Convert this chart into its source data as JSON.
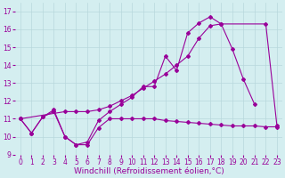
{
  "xlabel": "Windchill (Refroidissement éolien,°C)",
  "background_color": "#d4eef0",
  "grid_color": "#b8d8dc",
  "line_color": "#990099",
  "xlim": [
    -0.5,
    23.5
  ],
  "ylim": [
    9,
    17.5
  ],
  "xticks": [
    0,
    1,
    2,
    3,
    4,
    5,
    6,
    7,
    8,
    9,
    10,
    11,
    12,
    13,
    14,
    15,
    16,
    17,
    18,
    19,
    20,
    21,
    22,
    23
  ],
  "yticks": [
    9,
    10,
    11,
    12,
    13,
    14,
    15,
    16,
    17
  ],
  "line1_x": [
    0,
    1,
    2,
    3,
    4,
    5,
    6,
    7,
    8,
    9,
    10,
    11,
    12,
    13,
    14,
    15,
    16,
    17,
    18,
    19,
    20,
    21,
    22,
    23
  ],
  "line1_y": [
    11.0,
    10.2,
    11.1,
    11.4,
    10.0,
    9.55,
    9.55,
    10.5,
    11.0,
    11.0,
    11.0,
    11.0,
    11.0,
    10.9,
    10.85,
    10.8,
    10.75,
    10.7,
    10.65,
    10.6,
    10.6,
    10.6,
    10.55,
    10.55
  ],
  "line2_x": [
    0,
    1,
    2,
    3,
    4,
    5,
    6,
    7,
    8,
    9,
    10,
    11,
    12,
    13,
    14,
    15,
    16,
    17,
    18,
    19,
    20,
    21
  ],
  "line2_y": [
    11.0,
    10.2,
    11.1,
    11.5,
    10.0,
    9.55,
    9.7,
    10.9,
    11.4,
    11.8,
    12.2,
    12.8,
    12.8,
    14.5,
    13.7,
    15.8,
    16.35,
    16.7,
    16.3,
    14.9,
    13.2,
    11.8
  ],
  "line3_x": [
    0,
    4,
    5,
    6,
    7,
    8,
    9,
    10,
    11,
    12,
    13,
    14,
    15,
    16,
    17,
    18,
    22,
    23
  ],
  "line3_y": [
    11.0,
    11.4,
    11.4,
    11.4,
    11.5,
    11.7,
    12.0,
    12.3,
    12.7,
    13.1,
    13.5,
    14.0,
    14.5,
    15.5,
    16.2,
    16.3,
    16.3,
    10.6
  ],
  "fontsize_label": 6.5,
  "fontsize_tick": 5.5
}
